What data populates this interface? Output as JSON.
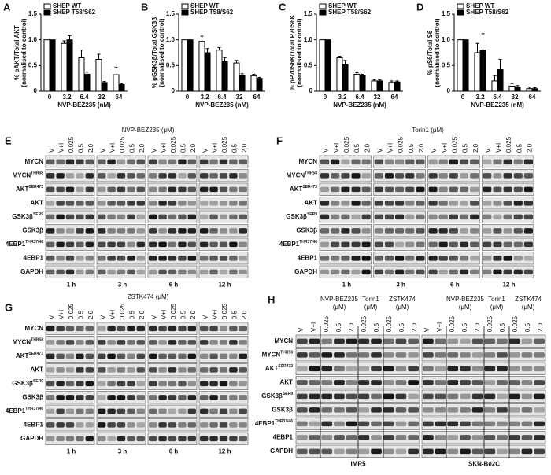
{
  "chart_data": [
    {
      "type": "bar",
      "panel": "A",
      "ylabel": "% pAKT/Total AKT",
      "ylabel2": "(normalised to control)",
      "xlabel": "NVP-BEZ235 (nM)",
      "categories": [
        "0",
        "3.2",
        "6.4",
        "32",
        "64"
      ],
      "series": [
        {
          "name": "SHEP WT",
          "color": "#ffffff",
          "values": [
            1,
            0.93,
            0.65,
            0.62,
            0.32
          ],
          "errors": [
            0,
            0.05,
            0.15,
            0.1,
            0.15
          ]
        },
        {
          "name": "SHEP T58/S62",
          "color": "#000000",
          "values": [
            1,
            1.0,
            0.33,
            0.17,
            0.13
          ],
          "errors": [
            0,
            0.08,
            0.04,
            0.02,
            0.02
          ]
        }
      ],
      "ylim": [
        0,
        1.5
      ],
      "yticks": [
        0,
        0.5,
        {
          "value": 1,
          "label": "1.0"
        },
        1.5
      ]
    },
    {
      "type": "bar",
      "panel": "B",
      "ylabel": "% pGSK3β/Total GSK3β",
      "ylabel2": "(normalised to control)",
      "xlabel": "NVP-BEZ235 (nM)",
      "categories": [
        "0",
        "3.2",
        "6.4",
        "32",
        "64"
      ],
      "series": [
        {
          "name": "SHEP WT",
          "color": "#ffffff",
          "values": [
            1,
            0.97,
            0.8,
            0.55,
            0.3
          ],
          "errors": [
            0,
            0.1,
            0.05,
            0.05,
            0.03
          ]
        },
        {
          "name": "SHEP T58/S62",
          "color": "#000000",
          "values": [
            1,
            0.75,
            0.58,
            0.3,
            0.25
          ],
          "errors": [
            0,
            0.08,
            0.07,
            0.04,
            0.02
          ]
        }
      ],
      "ylim": [
        0,
        1.5
      ],
      "yticks": [
        0,
        0.5,
        {
          "value": 1,
          "label": "1.0"
        },
        1.5
      ]
    },
    {
      "type": "bar",
      "panel": "C",
      "ylabel": "% pP70S6K/Total P70S6K",
      "ylabel2": "(normalised to control)",
      "xlabel": "NVP-BEZ235 (nM)",
      "categories": [
        "0",
        "3.2",
        "6.4",
        "32",
        "64"
      ],
      "series": [
        {
          "name": "SHEP WT",
          "color": "#ffffff",
          "values": [
            1,
            0.65,
            0.33,
            0.2,
            0.17
          ],
          "errors": [
            0,
            0.03,
            0.03,
            0.02,
            0.03
          ]
        },
        {
          "name": "SHEP T58/S62",
          "color": "#000000",
          "values": [
            1,
            0.52,
            0.3,
            0.2,
            0.18
          ],
          "errors": [
            0,
            0.08,
            0.03,
            0.02,
            0.02
          ]
        }
      ],
      "ylim": [
        0,
        1.5
      ],
      "yticks": [
        0,
        0.5,
        {
          "value": 1,
          "label": "1.0"
        },
        1.5
      ]
    },
    {
      "type": "bar",
      "panel": "D",
      "ylabel": "% pS6/Total S6",
      "ylabel2": "(normalised to control)",
      "xlabel": "NVP-BEZ235 (nM)",
      "categories": [
        "0",
        "3.2",
        "6.4",
        "32",
        "64"
      ],
      "series": [
        {
          "name": "SHEP WT",
          "color": "#ffffff",
          "values": [
            1,
            0.75,
            0.2,
            0.1,
            0.05
          ],
          "errors": [
            0,
            0.18,
            0.1,
            0.05,
            0.03
          ]
        },
        {
          "name": "SHEP T58/S62",
          "color": "#000000",
          "values": [
            1,
            0.8,
            0.42,
            0.08,
            0.05
          ],
          "errors": [
            0,
            0.32,
            0.2,
            0.03,
            0.02
          ]
        }
      ],
      "ylim": [
        0,
        1.5
      ],
      "yticks": [
        0,
        0.5,
        {
          "value": 1,
          "label": "1.0"
        },
        1.5
      ]
    }
  ],
  "blots": [
    {
      "panel": "E",
      "treatment": "NVP-BEZ235 (μM)",
      "lanes": [
        "V",
        "V+I",
        "0.025",
        "0.5",
        "2.0"
      ],
      "times": [
        "1 h",
        "3 h",
        "6 h",
        "12 h"
      ],
      "rows": [
        {
          "name": "MYCN"
        },
        {
          "name": "MYCN",
          "sup": "THR58"
        },
        {
          "name": "AKT",
          "sup": "SER473"
        },
        {
          "name": "AKT"
        },
        {
          "name": "GSK3β",
          "sup": "SER9"
        },
        {
          "name": "GSK3β"
        },
        {
          "name": "4EBP1",
          "sup": "THR37/46"
        },
        {
          "name": "4EBP1"
        },
        {
          "name": "GAPDH"
        }
      ]
    },
    {
      "panel": "F",
      "treatment": "Torin1 (μM)",
      "lanes": [
        "V",
        "V+I",
        "0.025",
        "0.5",
        "2.0"
      ],
      "times": [
        "1 h",
        "3 h",
        "6 h",
        "12 h"
      ],
      "rows": [
        {
          "name": "MYCN"
        },
        {
          "name": "MYCN",
          "sup": "THR58"
        },
        {
          "name": "AKT",
          "sup": "SER473"
        },
        {
          "name": "AKT"
        },
        {
          "name": "GSK3β",
          "sup": "SER9"
        },
        {
          "name": "GSK3β"
        },
        {
          "name": "4EBP1",
          "sup": "THR37/46"
        },
        {
          "name": "4EBP1"
        },
        {
          "name": "GAPDH"
        }
      ]
    },
    {
      "panel": "G",
      "treatment": "ZSTK474 (μM)",
      "lanes": [
        "V",
        "V+I",
        "0.025",
        "0.5",
        "2.0"
      ],
      "times": [
        "1 h",
        "3 h",
        "6 h",
        "12 h"
      ],
      "rows": [
        {
          "name": "MYCN"
        },
        {
          "name": "MYCN",
          "sup": "THR58"
        },
        {
          "name": "AKT",
          "sup": "SER473"
        },
        {
          "name": "AKT"
        },
        {
          "name": "GSK3β",
          "sup": "SER9"
        },
        {
          "name": "GSK3β"
        },
        {
          "name": "4EBP1",
          "sup": "THR37/46"
        },
        {
          "name": "4EBP1"
        },
        {
          "name": "GAPDH"
        }
      ]
    }
  ],
  "blot_h": {
    "panel": "H",
    "groups": [
      "NVP-BEZ235",
      "Torin1",
      "ZSTK474"
    ],
    "unit": "(μM)",
    "lanes": [
      "V",
      "V+I",
      "0.025",
      "0.5",
      "2.0",
      "0.025",
      "0.5",
      "0.025",
      "0.5",
      "2.0"
    ],
    "cells": [
      "IMR5",
      "SKN-Be2C"
    ],
    "rows": [
      {
        "name": "MYCN"
      },
      {
        "name": "MYCN",
        "sup": "THR58"
      },
      {
        "name": "AKT",
        "sup": "SER473"
      },
      {
        "name": "AKT"
      },
      {
        "name": "GSK3β",
        "sup": "SER9"
      },
      {
        "name": "GSK3β"
      },
      {
        "name": "4EBP1",
        "sup": "THR37/46"
      },
      {
        "name": "4EBP1"
      },
      {
        "name": "GAPDH"
      }
    ]
  }
}
